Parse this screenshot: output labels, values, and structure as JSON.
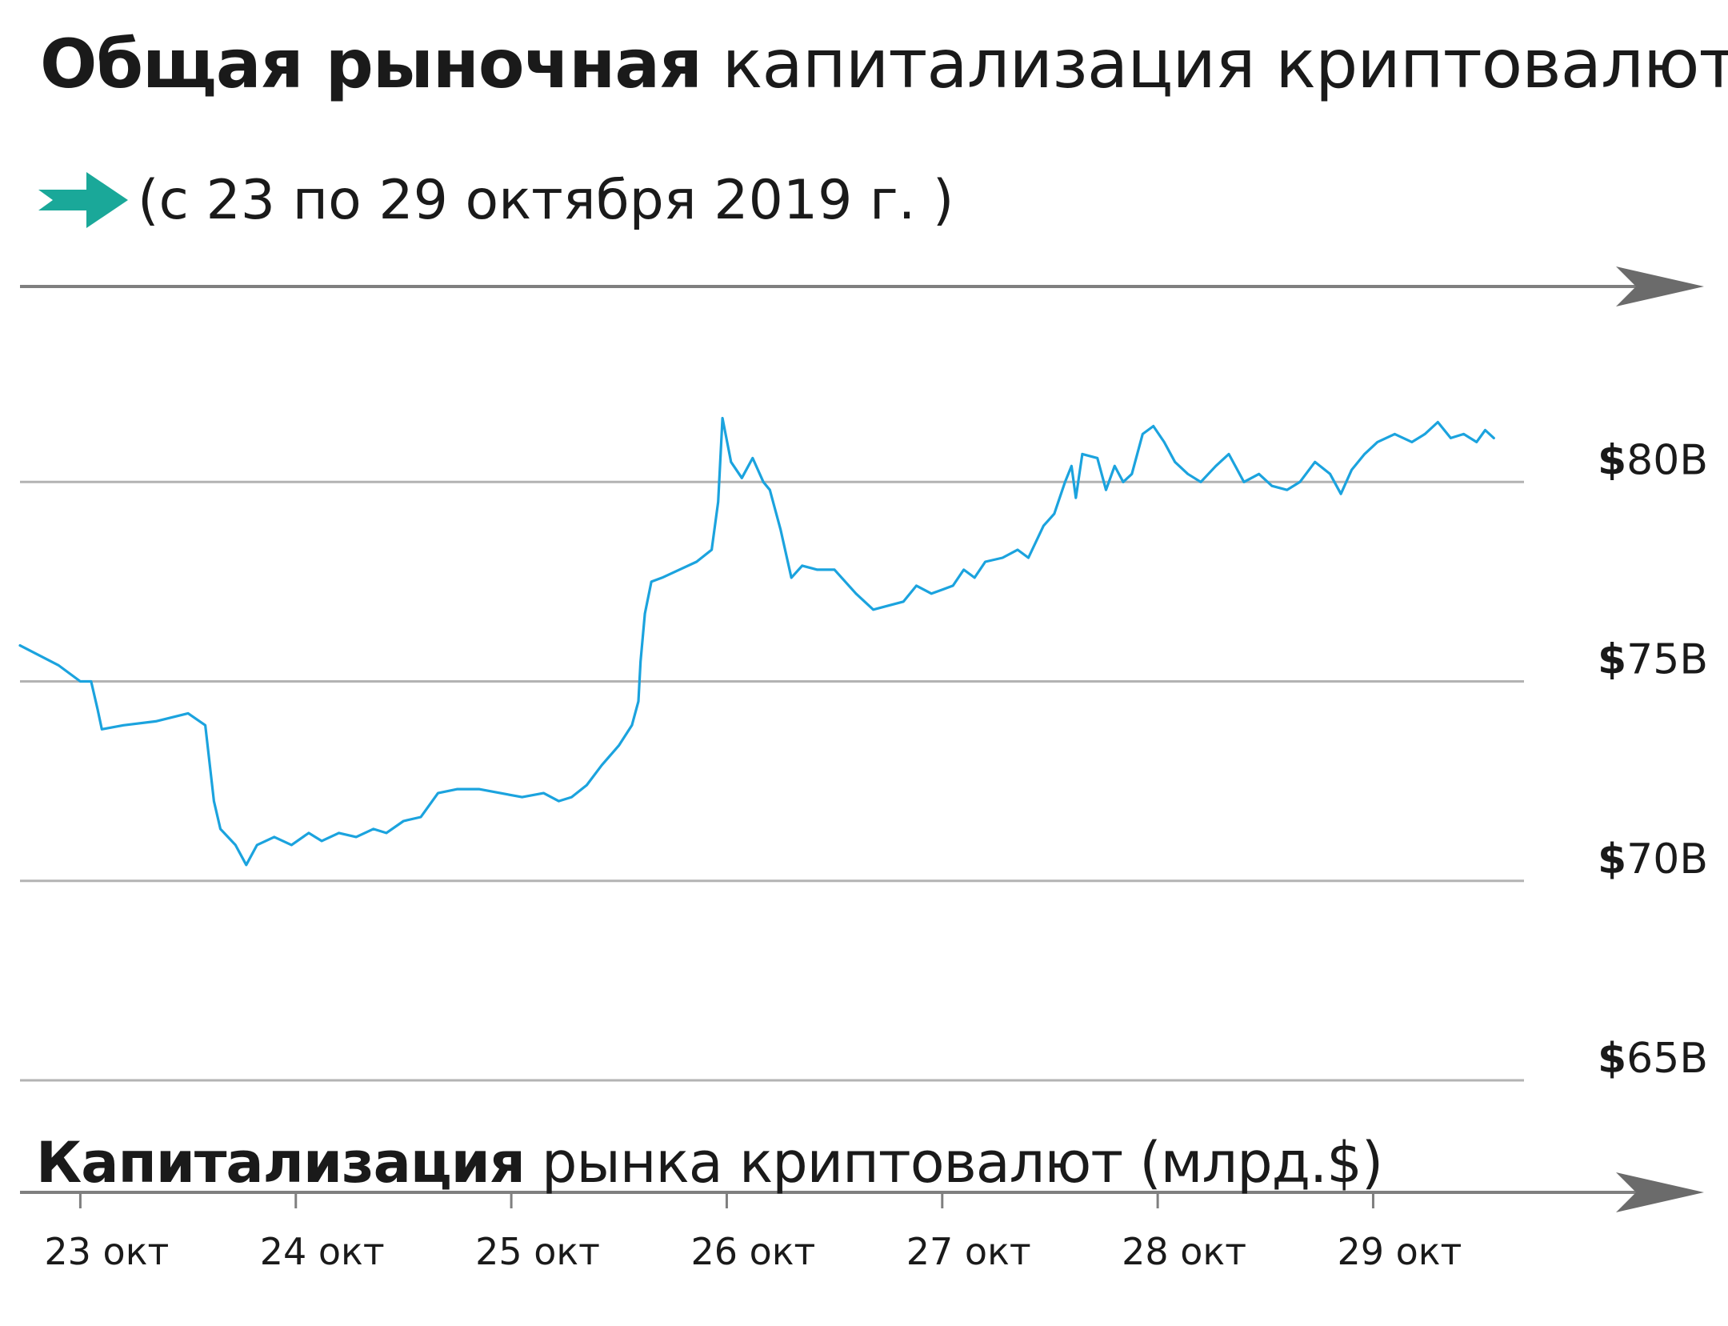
{
  "header": {
    "title_bold": "Общая рыночная",
    "title_light": "капитализация криптовалют",
    "subtitle": "(с 23 по 29 октября 2019 г. )",
    "arrow_icon": "teal-arrow-icon",
    "arrow_color": "#1aa899"
  },
  "caption": {
    "bold": "Капитализация",
    "light": "рынка криптовалют (млрд.$)"
  },
  "chart_data": {
    "type": "line",
    "x_categories": [
      "23 окт",
      "24 окт",
      "25 окт",
      "26 окт",
      "27 окт",
      "28 окт",
      "29 окт"
    ],
    "y_ticks": [
      {
        "value": 80,
        "currency": "$",
        "rest": "80B"
      },
      {
        "value": 75,
        "currency": "$",
        "rest": "75B"
      },
      {
        "value": 70,
        "currency": "$",
        "rest": "70B"
      },
      {
        "value": 65,
        "currency": "$",
        "rest": "65B"
      }
    ],
    "ylim": [
      65,
      84.9
    ],
    "xlim": [
      -0.28,
      6.7
    ],
    "grid": true,
    "line_color": "#1ba3de",
    "series": [
      {
        "points": [
          [
            -0.28,
            75.9
          ],
          [
            -0.1,
            75.4
          ],
          [
            0.0,
            75.0
          ],
          [
            0.05,
            75.0
          ],
          [
            0.08,
            74.3
          ],
          [
            0.1,
            73.8
          ],
          [
            0.2,
            73.9
          ],
          [
            0.35,
            74.0
          ],
          [
            0.5,
            74.2
          ],
          [
            0.58,
            73.9
          ],
          [
            0.62,
            72.0
          ],
          [
            0.65,
            71.3
          ],
          [
            0.72,
            70.9
          ],
          [
            0.77,
            70.4
          ],
          [
            0.82,
            70.9
          ],
          [
            0.9,
            71.1
          ],
          [
            0.98,
            70.9
          ],
          [
            1.06,
            71.2
          ],
          [
            1.12,
            71.0
          ],
          [
            1.2,
            71.2
          ],
          [
            1.28,
            71.1
          ],
          [
            1.36,
            71.3
          ],
          [
            1.42,
            71.2
          ],
          [
            1.5,
            71.5
          ],
          [
            1.58,
            71.6
          ],
          [
            1.66,
            72.2
          ],
          [
            1.75,
            72.3
          ],
          [
            1.85,
            72.3
          ],
          [
            1.95,
            72.2
          ],
          [
            2.05,
            72.1
          ],
          [
            2.15,
            72.2
          ],
          [
            2.22,
            72.0
          ],
          [
            2.28,
            72.1
          ],
          [
            2.35,
            72.4
          ],
          [
            2.42,
            72.9
          ],
          [
            2.5,
            73.4
          ],
          [
            2.56,
            73.9
          ],
          [
            2.59,
            74.5
          ],
          [
            2.6,
            75.5
          ],
          [
            2.62,
            76.7
          ],
          [
            2.65,
            77.5
          ],
          [
            2.7,
            77.6
          ],
          [
            2.78,
            77.8
          ],
          [
            2.86,
            78.0
          ],
          [
            2.93,
            78.3
          ],
          [
            2.96,
            79.5
          ],
          [
            2.98,
            81.6
          ],
          [
            3.02,
            80.5
          ],
          [
            3.07,
            80.1
          ],
          [
            3.12,
            80.6
          ],
          [
            3.17,
            80.0
          ],
          [
            3.2,
            79.8
          ],
          [
            3.25,
            78.8
          ],
          [
            3.3,
            77.6
          ],
          [
            3.35,
            77.9
          ],
          [
            3.42,
            77.8
          ],
          [
            3.5,
            77.8
          ],
          [
            3.55,
            77.5
          ],
          [
            3.6,
            77.2
          ],
          [
            3.68,
            76.8
          ],
          [
            3.75,
            76.9
          ],
          [
            3.82,
            77.0
          ],
          [
            3.88,
            77.4
          ],
          [
            3.95,
            77.2
          ],
          [
            4.0,
            77.3
          ],
          [
            4.05,
            77.4
          ],
          [
            4.1,
            77.8
          ],
          [
            4.15,
            77.6
          ],
          [
            4.2,
            78.0
          ],
          [
            4.28,
            78.1
          ],
          [
            4.35,
            78.3
          ],
          [
            4.4,
            78.1
          ],
          [
            4.47,
            78.9
          ],
          [
            4.52,
            79.2
          ],
          [
            4.57,
            80.0
          ],
          [
            4.6,
            80.4
          ],
          [
            4.62,
            79.6
          ],
          [
            4.65,
            80.7
          ],
          [
            4.72,
            80.6
          ],
          [
            4.76,
            79.8
          ],
          [
            4.8,
            80.4
          ],
          [
            4.84,
            80.0
          ],
          [
            4.88,
            80.2
          ],
          [
            4.93,
            81.2
          ],
          [
            4.98,
            81.4
          ],
          [
            5.03,
            81.0
          ],
          [
            5.08,
            80.5
          ],
          [
            5.14,
            80.2
          ],
          [
            5.2,
            80.0
          ],
          [
            5.27,
            80.4
          ],
          [
            5.33,
            80.7
          ],
          [
            5.4,
            80.0
          ],
          [
            5.47,
            80.2
          ],
          [
            5.53,
            79.9
          ],
          [
            5.6,
            79.8
          ],
          [
            5.66,
            80.0
          ],
          [
            5.73,
            80.5
          ],
          [
            5.8,
            80.2
          ],
          [
            5.85,
            79.7
          ],
          [
            5.9,
            80.3
          ],
          [
            5.96,
            80.7
          ],
          [
            6.02,
            81.0
          ],
          [
            6.1,
            81.2
          ],
          [
            6.18,
            81.0
          ],
          [
            6.24,
            81.2
          ],
          [
            6.3,
            81.5
          ],
          [
            6.36,
            81.1
          ],
          [
            6.42,
            81.2
          ],
          [
            6.48,
            81.0
          ],
          [
            6.52,
            81.3
          ],
          [
            6.56,
            81.1
          ]
        ]
      }
    ]
  }
}
